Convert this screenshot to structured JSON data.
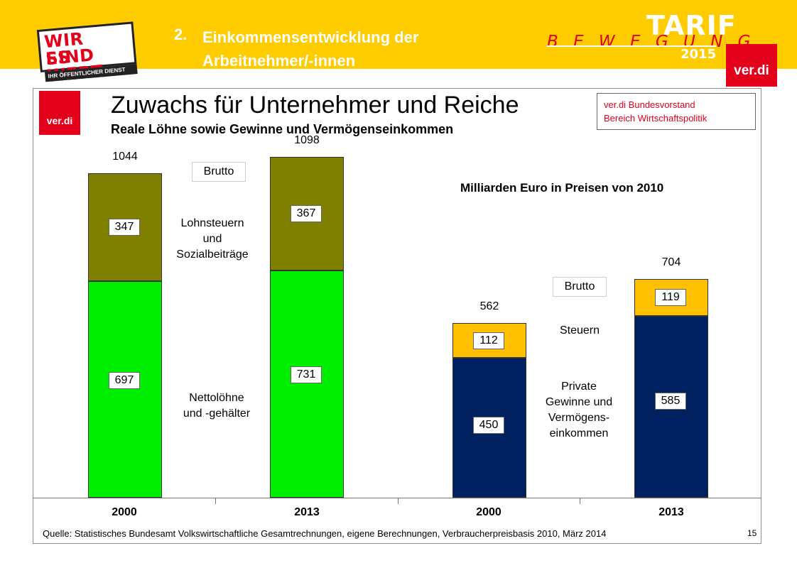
{
  "header": {
    "section_number": "2.",
    "section_title": "Einkommensentwicklung der Arbeitnehmer/-innen",
    "badge": {
      "line1": "WIR SIND",
      "line2": "ES WERT.",
      "tagline": "IHR ÖFFENTLICHER DIENST"
    },
    "campaign": {
      "tarif": "TARIF",
      "bewegung": "B E W E G U N G",
      "year": "2015"
    },
    "logo_text": "ver.di"
  },
  "slide": {
    "logo_text": "ver.di",
    "title": "Zuwachs für Unternehmer und Reiche",
    "subtitle": "Reale Löhne sowie Gewinne und Vermögenseinkommen",
    "source_box": {
      "line1": "ver.di Bundesvorstand",
      "line2": "Bereich Wirtschaftspolitik"
    },
    "unit": "Milliarden Euro in Preisen von 2010",
    "brutto_left": "Brutto",
    "brutto_right": "Brutto",
    "annotations": {
      "lohnsteuern": [
        "Lohnsteuern",
        "und",
        "Sozialbeiträge"
      ],
      "nettoloehne": [
        "Nettolöhne",
        "und -gehälter"
      ],
      "steuern": "Steuern",
      "private": [
        "Private",
        "Gewinne und",
        "Vermögens-",
        "einkommen"
      ]
    },
    "footer": "Quelle: Statistisches Bundesamt Volkswirtschaftliche Gesamtrechnungen, eigene Berechnungen, Verbraucherpreisbasis 2010, März 2014",
    "page_number": "15"
  },
  "colors": {
    "header_bg": "#ffcc00",
    "verdi_red": "#e2001a",
    "net_wages": "#00ee00",
    "wage_taxes": "#808000",
    "private_income": "#002060",
    "profit_taxes": "#ffc000"
  },
  "chart_data": {
    "type": "bar",
    "stacked": true,
    "categories": [
      "2000",
      "2013",
      "2000",
      "2013"
    ],
    "ylim": [
      0,
      1150
    ],
    "series": [
      {
        "name": "Nettolöhne und -gehälter / Private Gewinne und Vermögenseinkommen",
        "values": [
          697,
          731,
          450,
          585
        ]
      },
      {
        "name": "Lohnsteuern und Sozialbeiträge / Steuern",
        "values": [
          347,
          367,
          112,
          119
        ]
      }
    ],
    "totals": [
      1044,
      1098,
      562,
      704
    ],
    "labels": {
      "bottom": [
        "697",
        "731",
        "450",
        "585"
      ],
      "top": [
        "347",
        "367",
        "112",
        "119"
      ],
      "totals": [
        "1044",
        "1098",
        "562",
        "704"
      ]
    }
  }
}
